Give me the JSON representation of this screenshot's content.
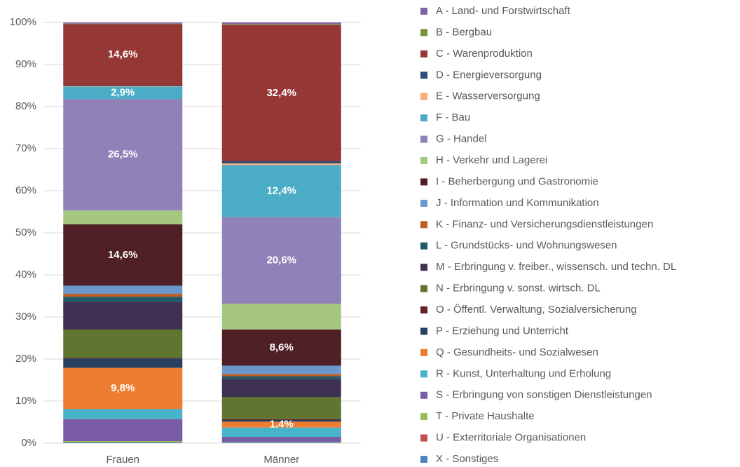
{
  "chart_data": {
    "type": "stacked_bar",
    "categories": [
      "Frauen",
      "Männer"
    ],
    "ylim": [
      0,
      100
    ],
    "yticks": [
      {
        "value": 0,
        "label": "0%"
      },
      {
        "value": 10,
        "label": "10%"
      },
      {
        "value": 20,
        "label": "20%"
      },
      {
        "value": 30,
        "label": "30%"
      },
      {
        "value": 40,
        "label": "40%"
      },
      {
        "value": 50,
        "label": "50%"
      },
      {
        "value": 60,
        "label": "60%"
      },
      {
        "value": 70,
        "label": "70%"
      },
      {
        "value": 80,
        "label": "80%"
      },
      {
        "value": 90,
        "label": "90%"
      },
      {
        "value": 100,
        "label": "100%"
      }
    ],
    "grid": true,
    "legend": "right",
    "series": [
      {
        "name": "A - Land- und Forstwirtschaft",
        "color": "#8064A2",
        "values": [
          0.3,
          0.4
        ]
      },
      {
        "name": "B - Bergbau",
        "color": "#77933C",
        "values": [
          0.1,
          0.2
        ]
      },
      {
        "name": "C - Warenproduktion",
        "color": "#953735",
        "values": [
          14.6,
          32.4
        ],
        "value_labels": [
          "14,6%",
          "32,4%"
        ]
      },
      {
        "name": "D - Energieversorgung",
        "color": "#2C4D75",
        "values": [
          0.2,
          0.5
        ]
      },
      {
        "name": "E - Wasserversorgung",
        "color": "#F9AD78",
        "values": [
          0.1,
          0.4
        ]
      },
      {
        "name": "F - Bau",
        "color": "#4BACC6",
        "values": [
          2.9,
          12.4
        ],
        "value_labels": [
          "2,9%",
          "12,4%"
        ]
      },
      {
        "name": "G - Handel",
        "color": "#9181B9",
        "values": [
          26.5,
          20.6
        ],
        "value_labels": [
          "26,5%",
          "20,6%"
        ]
      },
      {
        "name": "H - Verkehr und Lagerei",
        "color": "#A5C77F",
        "values": [
          3.3,
          6.1
        ]
      },
      {
        "name": "I - Beherbergung und Gastronomie",
        "color": "#4F2127",
        "values": [
          14.6,
          8.6
        ],
        "value_labels": [
          "14,6%",
          "8,6%"
        ]
      },
      {
        "name": "J - Information und Kommunikation",
        "color": "#6A97CE",
        "values": [
          1.9,
          2.0
        ]
      },
      {
        "name": "K - Finanz- und Versicherungsdienstleistungen",
        "color": "#BF5E1E",
        "values": [
          0.7,
          0.5
        ]
      },
      {
        "name": "L - Grundstücks- und Wohnungswesen",
        "color": "#215968",
        "values": [
          1.2,
          0.6
        ]
      },
      {
        "name": "M - Erbringung v. freiber., wissensch. und techn. DL",
        "color": "#3F3151",
        "values": [
          6.6,
          4.3
        ]
      },
      {
        "name": "N - Erbringung v. sonst. wirtsch. DL",
        "color": "#5F7530",
        "values": [
          6.7,
          5.3
        ]
      },
      {
        "name": "O - Öffentl. Verwaltung, Sozialversicherung",
        "color": "#632523",
        "values": [
          0.2,
          0.2
        ]
      },
      {
        "name": "P - Erziehung und Unterricht",
        "color": "#254061",
        "values": [
          2.2,
          0.4
        ]
      },
      {
        "name": "Q - Gesundheits- und Sozialwesen",
        "color": "#ED7D31",
        "values": [
          9.8,
          1.4
        ],
        "value_labels": [
          "9,8%",
          "1,4%"
        ]
      },
      {
        "name": "R - Kunst, Unterhaltung und Erholung",
        "color": "#47B3C9",
        "values": [
          2.4,
          2.2
        ]
      },
      {
        "name": "S - Erbringung von sonstigen Dienstleistungen",
        "color": "#7A5BA6",
        "values": [
          5.2,
          1.2
        ]
      },
      {
        "name": "T - Private Haushalte",
        "color": "#9BBB59",
        "values": [
          0.3,
          0.1
        ]
      },
      {
        "name": "U - Exterritoriale Organisationen",
        "color": "#C0504D",
        "values": [
          0,
          0
        ]
      },
      {
        "name": "X - Sonstiges",
        "color": "#4F81BD",
        "values": [
          0.2,
          0.2
        ]
      }
    ]
  }
}
